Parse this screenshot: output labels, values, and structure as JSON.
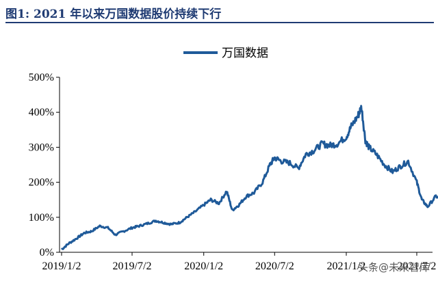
{
  "header": {
    "title": "图1: 2021 年以来万国数据股价持续下行"
  },
  "watermark": "头条@未来智库",
  "colors": {
    "line": "#1f5a99",
    "title": "#1f3b73",
    "axis": "#000000"
  },
  "chart_data": {
    "type": "line",
    "title": "",
    "xlabel": "",
    "ylabel": "",
    "x_ticks": [
      "2019/1/2",
      "2019/7/2",
      "2020/1/2",
      "2020/7/2",
      "2021/1/2",
      "2021/7/2"
    ],
    "y_ticks": [
      "0%",
      "100%",
      "200%",
      "300%",
      "400%",
      "500%"
    ],
    "ylim": [
      0,
      500
    ],
    "legend": {
      "entries": [
        "万国数据"
      ],
      "position": "top"
    },
    "grid": false,
    "series": [
      {
        "name": "万国数据",
        "x": [
          "2019/1/2",
          "2019/1/20",
          "2019/2/10",
          "2019/3/1",
          "2019/3/20",
          "2019/4/10",
          "2019/5/1",
          "2019/5/20",
          "2019/6/10",
          "2019/7/2",
          "2019/7/20",
          "2019/8/10",
          "2019/9/1",
          "2019/9/20",
          "2019/10/10",
          "2019/11/1",
          "2019/11/20",
          "2019/12/10",
          "2020/1/2",
          "2020/1/20",
          "2020/2/10",
          "2020/3/1",
          "2020/3/15",
          "2020/4/1",
          "2020/4/20",
          "2020/5/10",
          "2020/6/1",
          "2020/6/20",
          "2020/7/2",
          "2020/7/20",
          "2020/8/10",
          "2020/9/1",
          "2020/9/20",
          "2020/10/10",
          "2020/11/1",
          "2020/11/20",
          "2020/12/10",
          "2021/1/2",
          "2021/1/15",
          "2021/2/1",
          "2021/2/10",
          "2021/2/20",
          "2021/3/1",
          "2021/3/20",
          "2021/4/10",
          "2021/5/1",
          "2021/5/20",
          "2021/6/10",
          "2021/7/2",
          "2021/7/15",
          "2021/7/30",
          "2021/8/20",
          "2021/9/10",
          "2021/9/30"
        ],
        "values": [
          8,
          25,
          40,
          55,
          60,
          75,
          70,
          50,
          60,
          70,
          75,
          82,
          90,
          85,
          80,
          85,
          100,
          115,
          135,
          150,
          140,
          175,
          120,
          135,
          160,
          170,
          200,
          250,
          270,
          260,
          255,
          240,
          280,
          290,
          310,
          305,
          310,
          330,
          360,
          390,
          415,
          320,
          300,
          280,
          250,
          230,
          245,
          260,
          200,
          150,
          130,
          160,
          150,
          175
        ]
      }
    ]
  }
}
